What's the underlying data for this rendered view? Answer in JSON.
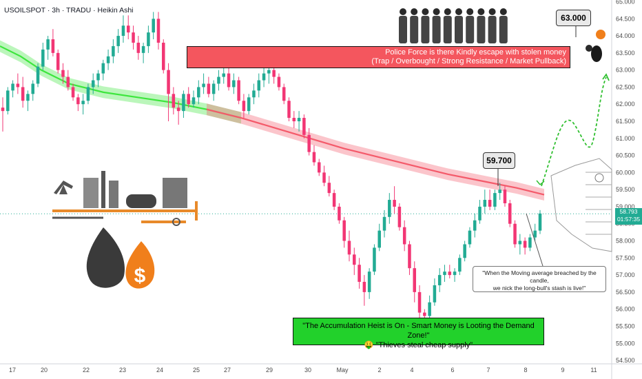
{
  "symbol_header": "USOILSPOT · 3h · TRADU · Heikin Ashi",
  "colors": {
    "up": "#22ab94",
    "down": "#f23674",
    "ma_green": "#3de63d",
    "ma_red": "#f45a6a",
    "banner_red": "#f4565e",
    "banner_green": "#22d12b"
  },
  "current_price": {
    "value": "58.793",
    "countdown": "01:57:35"
  },
  "callouts": {
    "top_target": "63.000",
    "swing_high": "59.700"
  },
  "banners": {
    "red_line1": "Police Force is there Kindly escape with stolen money",
    "red_line2": "(Trap / Overbought / Strong Resistance / Market Pullback)",
    "green_line1": "\"The Accumulation Heist is On - Smart Money is Looting the Demand Zone!\"",
    "green_line2": "\"Thieves steal cheap supply\"",
    "green_emoji": "🤑"
  },
  "note": {
    "line1": "\"When the Moving average breached by the candle,",
    "line2": "we nick the long-bull's stash is live!\""
  },
  "chart_data": {
    "type": "candlestick",
    "chart_style": "Heikin Ashi",
    "timeframe": "3h",
    "y_ticks": [
      "54.500",
      "55.000",
      "55.500",
      "56.000",
      "56.500",
      "57.000",
      "57.500",
      "58.000",
      "58.500",
      "59.000",
      "59.500",
      "60.000",
      "60.500",
      "61.000",
      "61.500",
      "62.000",
      "62.500",
      "63.000",
      "63.500",
      "64.000",
      "64.500",
      "65.000"
    ],
    "ylim": [
      54.4,
      65.05
    ],
    "x_ticks": [
      "17",
      "20",
      "22",
      "23",
      "24",
      "25",
      "27",
      "29",
      "30",
      "May",
      "2",
      "4",
      "6",
      "7",
      "8",
      "9",
      "11"
    ],
    "price_line": 58.793,
    "moving_average_bands": [
      {
        "name": "",
        "color": "green/red",
        "points": [
          [
            0,
            63.7
          ],
          [
            30,
            63.4
          ],
          [
            60,
            63.0
          ],
          [
            100,
            62.6
          ],
          [
            150,
            62.35
          ],
          [
            200,
            62.2
          ],
          [
            250,
            62.05
          ],
          [
            300,
            61.85
          ],
          [
            350,
            61.6
          ],
          [
            400,
            61.3
          ],
          [
            450,
            61.0
          ],
          [
            500,
            60.7
          ],
          [
            550,
            60.45
          ],
          [
            600,
            60.2
          ],
          [
            650,
            59.95
          ],
          [
            700,
            59.75
          ],
          [
            750,
            59.55
          ],
          [
            790,
            59.35
          ]
        ]
      }
    ],
    "candles": [
      {
        "o": 61.9,
        "h": 62.2,
        "l": 61.2,
        "c": 61.8
      },
      {
        "o": 61.8,
        "h": 62.5,
        "l": 61.7,
        "c": 62.4
      },
      {
        "o": 62.4,
        "h": 62.7,
        "l": 62.2,
        "c": 62.6
      },
      {
        "o": 62.6,
        "h": 62.9,
        "l": 62.3,
        "c": 62.5
      },
      {
        "o": 62.5,
        "h": 62.8,
        "l": 61.9,
        "c": 62.1
      },
      {
        "o": 62.1,
        "h": 62.4,
        "l": 61.8,
        "c": 62.3
      },
      {
        "o": 62.3,
        "h": 62.7,
        "l": 62.1,
        "c": 62.6
      },
      {
        "o": 62.6,
        "h": 63.2,
        "l": 62.5,
        "c": 63.1
      },
      {
        "o": 63.1,
        "h": 63.8,
        "l": 63.0,
        "c": 63.6
      },
      {
        "o": 63.6,
        "h": 64.0,
        "l": 63.3,
        "c": 63.9
      },
      {
        "o": 63.9,
        "h": 64.2,
        "l": 63.4,
        "c": 63.5
      },
      {
        "o": 63.5,
        "h": 63.6,
        "l": 62.9,
        "c": 63.0
      },
      {
        "o": 63.0,
        "h": 63.2,
        "l": 62.6,
        "c": 62.8
      },
      {
        "o": 62.8,
        "h": 63.0,
        "l": 62.4,
        "c": 62.5
      },
      {
        "o": 62.5,
        "h": 62.6,
        "l": 62.1,
        "c": 62.2
      },
      {
        "o": 62.2,
        "h": 62.3,
        "l": 61.8,
        "c": 62.0
      },
      {
        "o": 62.0,
        "h": 62.3,
        "l": 61.7,
        "c": 62.1
      },
      {
        "o": 62.1,
        "h": 62.6,
        "l": 62.0,
        "c": 62.5
      },
      {
        "o": 62.5,
        "h": 62.9,
        "l": 62.3,
        "c": 62.7
      },
      {
        "o": 62.7,
        "h": 63.0,
        "l": 62.5,
        "c": 62.9
      },
      {
        "o": 62.9,
        "h": 63.3,
        "l": 62.7,
        "c": 63.2
      },
      {
        "o": 63.2,
        "h": 63.6,
        "l": 63.0,
        "c": 63.4
      },
      {
        "o": 63.4,
        "h": 63.9,
        "l": 63.2,
        "c": 63.7
      },
      {
        "o": 63.7,
        "h": 64.2,
        "l": 63.5,
        "c": 64.0
      },
      {
        "o": 64.0,
        "h": 64.6,
        "l": 63.8,
        "c": 64.3
      },
      {
        "o": 64.3,
        "h": 64.6,
        "l": 63.9,
        "c": 64.1
      },
      {
        "o": 64.1,
        "h": 64.3,
        "l": 63.6,
        "c": 63.8
      },
      {
        "o": 63.8,
        "h": 64.0,
        "l": 63.3,
        "c": 63.5
      },
      {
        "o": 63.5,
        "h": 63.8,
        "l": 63.2,
        "c": 63.7
      },
      {
        "o": 63.7,
        "h": 64.3,
        "l": 63.5,
        "c": 64.1
      },
      {
        "o": 64.1,
        "h": 64.7,
        "l": 63.9,
        "c": 64.5
      },
      {
        "o": 64.5,
        "h": 64.7,
        "l": 63.6,
        "c": 63.8
      },
      {
        "o": 63.8,
        "h": 63.9,
        "l": 62.9,
        "c": 63.0
      },
      {
        "o": 63.0,
        "h": 63.2,
        "l": 61.5,
        "c": 62.3
      },
      {
        "o": 62.3,
        "h": 62.5,
        "l": 61.7,
        "c": 61.9
      },
      {
        "o": 61.9,
        "h": 62.1,
        "l": 61.4,
        "c": 61.8
      },
      {
        "o": 61.8,
        "h": 62.4,
        "l": 61.6,
        "c": 62.3
      },
      {
        "o": 62.3,
        "h": 62.5,
        "l": 61.9,
        "c": 62.0
      },
      {
        "o": 62.0,
        "h": 62.4,
        "l": 61.9,
        "c": 62.2
      },
      {
        "o": 62.2,
        "h": 62.7,
        "l": 62.0,
        "c": 62.5
      },
      {
        "o": 62.5,
        "h": 62.9,
        "l": 62.3,
        "c": 62.6
      },
      {
        "o": 62.6,
        "h": 62.8,
        "l": 62.2,
        "c": 62.3
      },
      {
        "o": 62.3,
        "h": 62.7,
        "l": 62.1,
        "c": 62.6
      },
      {
        "o": 62.6,
        "h": 63.0,
        "l": 62.4,
        "c": 62.8
      },
      {
        "o": 62.8,
        "h": 63.1,
        "l": 62.6,
        "c": 62.9
      },
      {
        "o": 62.9,
        "h": 63.1,
        "l": 62.4,
        "c": 62.5
      },
      {
        "o": 62.5,
        "h": 62.9,
        "l": 62.3,
        "c": 62.7
      },
      {
        "o": 62.7,
        "h": 62.8,
        "l": 62.0,
        "c": 62.1
      },
      {
        "o": 62.1,
        "h": 62.3,
        "l": 61.6,
        "c": 61.8
      },
      {
        "o": 61.8,
        "h": 62.3,
        "l": 61.7,
        "c": 62.2
      },
      {
        "o": 62.2,
        "h": 62.6,
        "l": 62.0,
        "c": 62.4
      },
      {
        "o": 62.4,
        "h": 62.9,
        "l": 62.2,
        "c": 62.7
      },
      {
        "o": 62.7,
        "h": 63.1,
        "l": 62.5,
        "c": 62.9
      },
      {
        "o": 62.9,
        "h": 63.2,
        "l": 62.6,
        "c": 63.0
      },
      {
        "o": 63.0,
        "h": 63.1,
        "l": 62.6,
        "c": 62.8
      },
      {
        "o": 62.8,
        "h": 62.9,
        "l": 62.4,
        "c": 62.5
      },
      {
        "o": 62.5,
        "h": 62.6,
        "l": 62.0,
        "c": 62.1
      },
      {
        "o": 62.1,
        "h": 62.2,
        "l": 61.5,
        "c": 61.6
      },
      {
        "o": 61.6,
        "h": 61.8,
        "l": 61.3,
        "c": 61.5
      },
      {
        "o": 61.5,
        "h": 61.8,
        "l": 61.2,
        "c": 61.6
      },
      {
        "o": 61.6,
        "h": 61.7,
        "l": 61.0,
        "c": 61.1
      },
      {
        "o": 61.1,
        "h": 61.3,
        "l": 60.5,
        "c": 60.6
      },
      {
        "o": 60.6,
        "h": 60.8,
        "l": 60.2,
        "c": 60.3
      },
      {
        "o": 60.3,
        "h": 60.4,
        "l": 59.9,
        "c": 60.0
      },
      {
        "o": 60.0,
        "h": 60.2,
        "l": 59.6,
        "c": 59.7
      },
      {
        "o": 59.7,
        "h": 59.9,
        "l": 59.3,
        "c": 59.4
      },
      {
        "o": 59.4,
        "h": 59.5,
        "l": 58.9,
        "c": 59.0
      },
      {
        "o": 59.0,
        "h": 59.1,
        "l": 58.5,
        "c": 58.6
      },
      {
        "o": 58.6,
        "h": 58.7,
        "l": 57.8,
        "c": 58.0
      },
      {
        "o": 58.0,
        "h": 58.3,
        "l": 57.4,
        "c": 57.6
      },
      {
        "o": 57.6,
        "h": 57.8,
        "l": 57.0,
        "c": 57.3
      },
      {
        "o": 57.3,
        "h": 57.5,
        "l": 56.6,
        "c": 56.8
      },
      {
        "o": 56.8,
        "h": 57.0,
        "l": 56.1,
        "c": 56.5
      },
      {
        "o": 56.5,
        "h": 57.2,
        "l": 56.3,
        "c": 57.1
      },
      {
        "o": 57.1,
        "h": 57.9,
        "l": 57.0,
        "c": 57.8
      },
      {
        "o": 57.8,
        "h": 58.5,
        "l": 57.7,
        "c": 58.3
      },
      {
        "o": 58.3,
        "h": 58.9,
        "l": 58.1,
        "c": 58.7
      },
      {
        "o": 58.7,
        "h": 59.4,
        "l": 58.5,
        "c": 59.2
      },
      {
        "o": 59.2,
        "h": 59.6,
        "l": 58.8,
        "c": 59.0
      },
      {
        "o": 59.0,
        "h": 59.1,
        "l": 58.3,
        "c": 58.4
      },
      {
        "o": 58.4,
        "h": 58.6,
        "l": 57.7,
        "c": 57.9
      },
      {
        "o": 57.9,
        "h": 58.0,
        "l": 57.0,
        "c": 57.2
      },
      {
        "o": 57.2,
        "h": 57.4,
        "l": 56.2,
        "c": 56.5
      },
      {
        "o": 56.5,
        "h": 56.7,
        "l": 55.7,
        "c": 55.9
      },
      {
        "o": 55.9,
        "h": 56.0,
        "l": 55.6,
        "c": 55.8
      },
      {
        "o": 55.8,
        "h": 56.4,
        "l": 55.7,
        "c": 56.2
      },
      {
        "o": 56.2,
        "h": 56.9,
        "l": 56.1,
        "c": 56.7
      },
      {
        "o": 56.7,
        "h": 57.2,
        "l": 56.5,
        "c": 57.0
      },
      {
        "o": 57.0,
        "h": 57.3,
        "l": 56.8,
        "c": 57.1
      },
      {
        "o": 57.1,
        "h": 57.3,
        "l": 56.9,
        "c": 57.0
      },
      {
        "o": 57.0,
        "h": 57.2,
        "l": 56.8,
        "c": 57.1
      },
      {
        "o": 57.1,
        "h": 57.6,
        "l": 57.0,
        "c": 57.5
      },
      {
        "o": 57.5,
        "h": 58.0,
        "l": 57.4,
        "c": 57.9
      },
      {
        "o": 57.9,
        "h": 58.4,
        "l": 57.8,
        "c": 58.3
      },
      {
        "o": 58.3,
        "h": 58.8,
        "l": 58.1,
        "c": 58.6
      },
      {
        "o": 58.6,
        "h": 59.2,
        "l": 58.5,
        "c": 59.0
      },
      {
        "o": 59.0,
        "h": 59.5,
        "l": 58.8,
        "c": 59.2
      },
      {
        "o": 59.2,
        "h": 59.5,
        "l": 58.9,
        "c": 59.0
      },
      {
        "o": 59.0,
        "h": 59.5,
        "l": 58.9,
        "c": 59.4
      },
      {
        "o": 59.4,
        "h": 59.7,
        "l": 59.2,
        "c": 59.5
      },
      {
        "o": 59.5,
        "h": 59.6,
        "l": 59.0,
        "c": 59.1
      },
      {
        "o": 59.1,
        "h": 59.2,
        "l": 58.4,
        "c": 58.5
      },
      {
        "o": 58.5,
        "h": 58.6,
        "l": 57.8,
        "c": 57.9
      },
      {
        "o": 57.9,
        "h": 58.2,
        "l": 57.6,
        "c": 58.0
      },
      {
        "o": 58.0,
        "h": 58.1,
        "l": 57.6,
        "c": 57.8
      },
      {
        "o": 57.8,
        "h": 58.2,
        "l": 57.7,
        "c": 58.1
      },
      {
        "o": 58.1,
        "h": 58.5,
        "l": 58.0,
        "c": 58.3
      },
      {
        "o": 58.3,
        "h": 58.9,
        "l": 58.2,
        "c": 58.8
      }
    ]
  }
}
